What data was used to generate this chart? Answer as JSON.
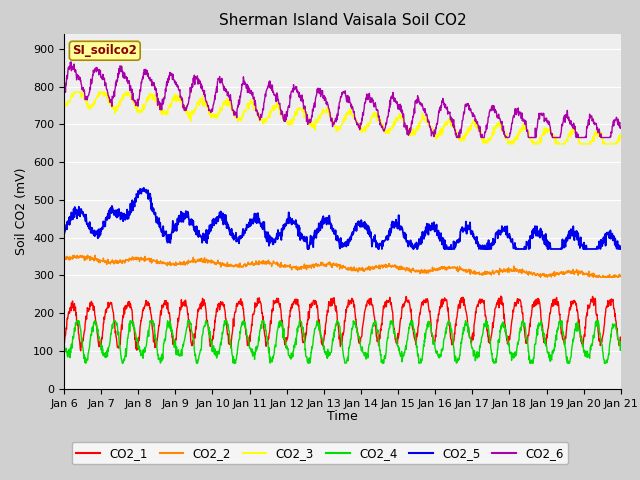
{
  "title": "Sherman Island Vaisala Soil CO2",
  "ylabel": "Soil CO2 (mV)",
  "xlabel": "Time",
  "legend_label": "SI_soilco2",
  "x_tick_labels": [
    "Jan 6",
    "Jan 7",
    "Jan 8",
    "Jan 9",
    "Jan 10",
    "Jan 11",
    "Jan 12",
    "Jan 13",
    "Jan 14",
    "Jan 15",
    "Jan 16",
    "Jan 17",
    "Jan 18",
    "Jan 19",
    "Jan 20",
    "Jan 21"
  ],
  "ylim": [
    0,
    940
  ],
  "yticks": [
    0,
    100,
    200,
    300,
    400,
    500,
    600,
    700,
    800,
    900
  ],
  "series_colors": {
    "CO2_1": "#ff0000",
    "CO2_2": "#ff8800",
    "CO2_3": "#ffff00",
    "CO2_4": "#00dd00",
    "CO2_5": "#0000ee",
    "CO2_6": "#aa00aa"
  },
  "n_points": 1500,
  "fig_facecolor": "#d0d0d0",
  "plot_bg_color": "#eeeeee",
  "title_fontsize": 11,
  "axis_fontsize": 9,
  "tick_fontsize": 8,
  "legend_box_facecolor": "#ffff99",
  "legend_box_edgecolor": "#aa8800"
}
